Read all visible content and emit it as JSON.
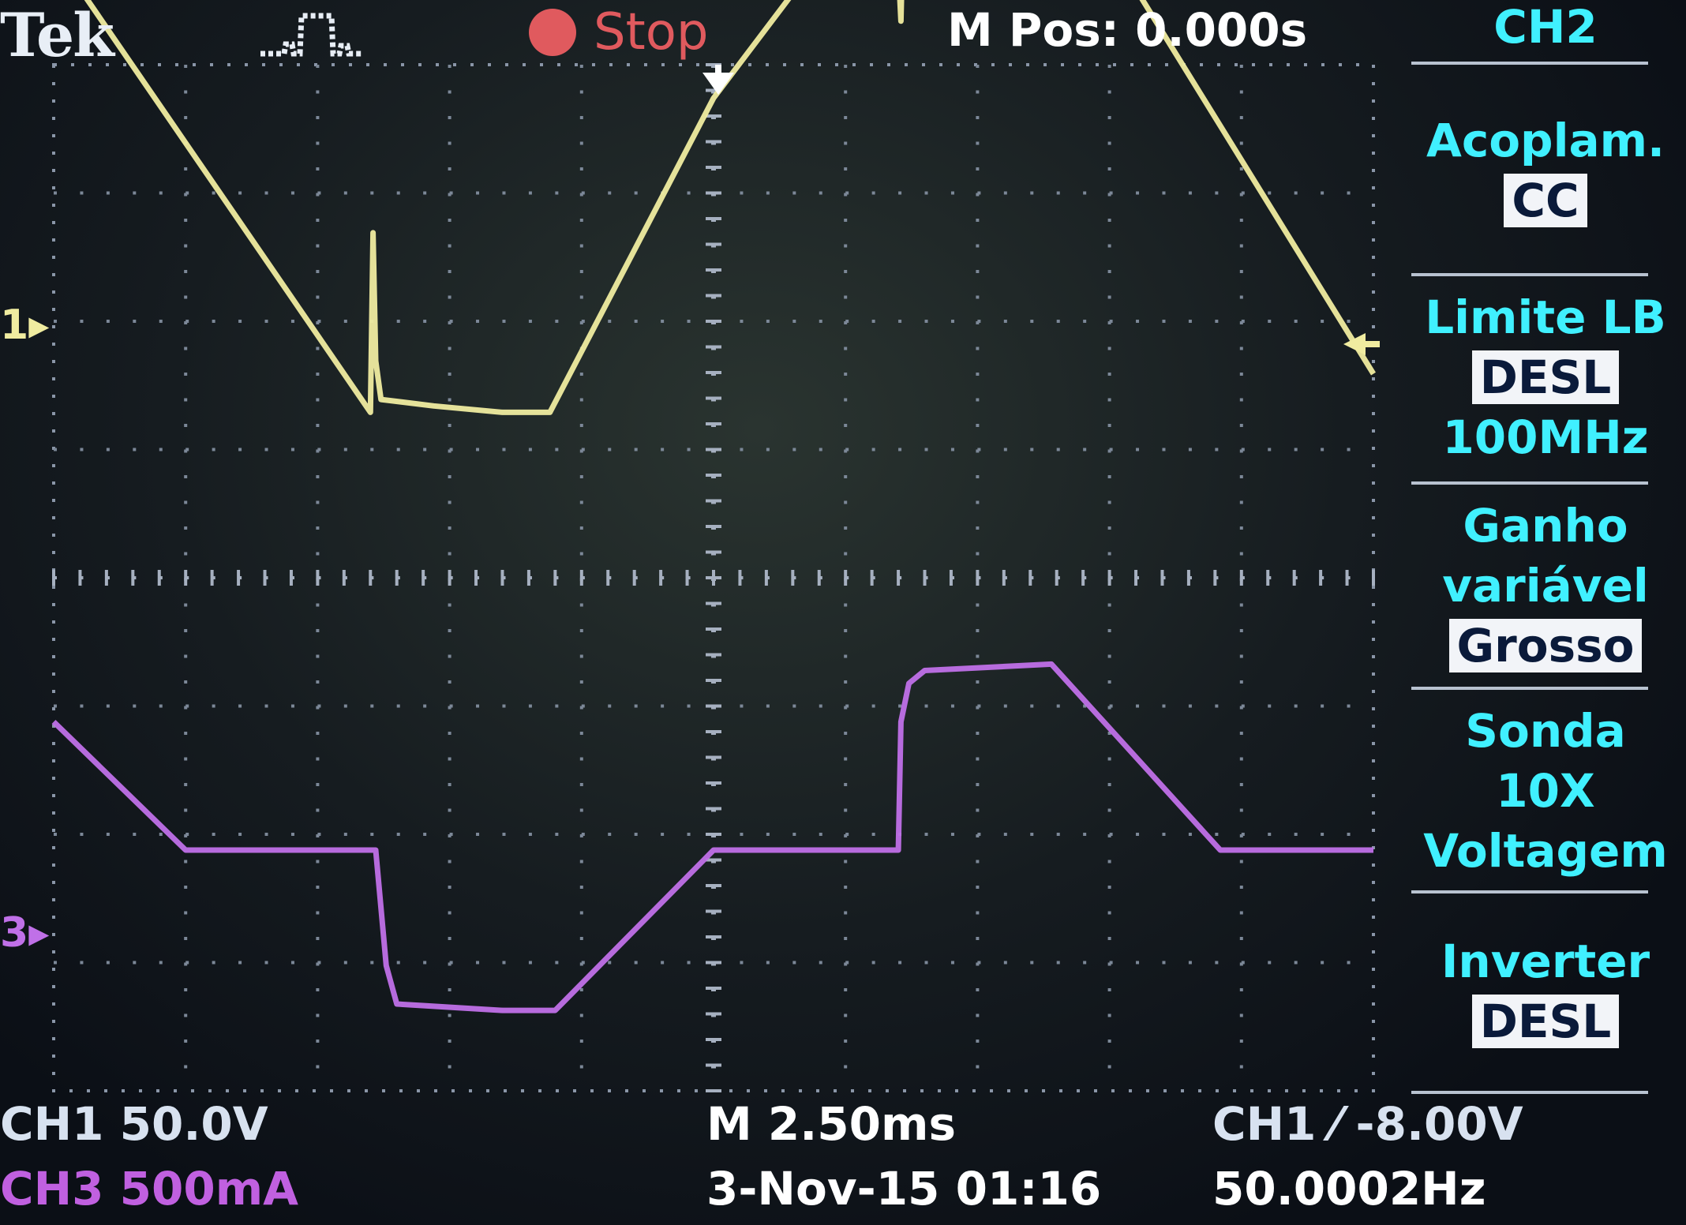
{
  "header": {
    "brand": "Tek",
    "run_state": "Stop",
    "horizontal_position": "M Pos: 0.000s",
    "channel_menu": "CH2"
  },
  "side_menu": {
    "items": [
      {
        "label": "Acoplam.",
        "value": "CC"
      },
      {
        "label": "Limite LB",
        "value": "DESL",
        "extra": "100MHz"
      },
      {
        "label": "Ganho\nvariável",
        "label_lines": [
          "Ganho",
          "variável"
        ],
        "value": "Grosso"
      },
      {
        "label_lines": [
          "Sonda",
          "10X",
          "Voltagem"
        ]
      },
      {
        "label": "Inverter",
        "value": "DESL"
      }
    ]
  },
  "footer": {
    "ch1_scale": "CH1  50.0V",
    "ch3_scale": "CH3  500mA",
    "timebase": "M 2.50ms",
    "date_time": "3-Nov-15 01:16",
    "trigger": "CH1 ⁄ -8.00V",
    "frequency": "50.0002Hz"
  },
  "markers": {
    "ch1": "1",
    "ch3": "3"
  },
  "colors": {
    "ch1": "#f0eca0",
    "ch3": "#c070e8",
    "menu_text": "#40f0ff",
    "stop": "#e05a5e"
  },
  "chart_data": {
    "type": "line",
    "title": "",
    "xlabel": "",
    "ylabel": "",
    "xlim": [
      -12.5,
      12.5
    ],
    "grid": true,
    "divisions": {
      "x": 10,
      "y": 8
    },
    "series": [
      {
        "name": "CH1",
        "units": "V",
        "scale_per_div": 50,
        "x_ms": [
          -12.5,
          -6.5,
          -6.45,
          -6.4,
          -6.3,
          -5.3,
          -4.0,
          -3.1,
          0,
          3.4,
          3.55,
          3.6,
          3.7,
          4.5,
          6.5,
          12.5
        ],
        "y_div": [
          3.05,
          -0.55,
          0.85,
          -0.15,
          -0.45,
          -0.5,
          -0.55,
          -0.55,
          1.9,
          3.75,
          2.5,
          3.4,
          3.65,
          3.75,
          3.75,
          -0.25
        ]
      },
      {
        "name": "CH3",
        "units": "mA",
        "scale_per_div": 500,
        "x_ms": [
          -12.5,
          -10.0,
          -6.4,
          -6.2,
          -6.0,
          -4.0,
          -3.0,
          0,
          3.5,
          3.55,
          3.7,
          4.0,
          6.4,
          9.6,
          12.5
        ],
        "y_div": [
          1.0,
          0.0,
          0.0,
          -0.9,
          -1.2,
          -1.25,
          -1.25,
          0.0,
          0.0,
          1.0,
          1.3,
          1.4,
          1.45,
          0.0,
          0.0
        ]
      }
    ]
  }
}
